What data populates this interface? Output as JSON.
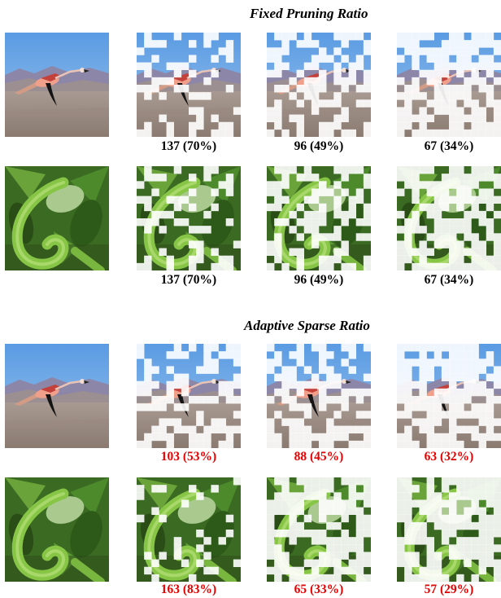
{
  "sections": [
    {
      "title": "Fixed Pruning Ratio",
      "rows": [
        {
          "image": "flamingo",
          "labels": [
            "137 (70%)",
            "96 (49%)",
            "67 (34%)"
          ]
        },
        {
          "image": "snake",
          "labels": [
            "137 (70%)",
            "96 (49%)",
            "67 (34%)"
          ]
        }
      ]
    },
    {
      "title": "Adaptive Sparse Ratio",
      "rows": [
        {
          "image": "flamingo",
          "labels": [
            "103 (53%)",
            "88 (45%)",
            "63 (32%)"
          ]
        },
        {
          "image": "snake",
          "labels": [
            "163 (83%)",
            "65 (33%)",
            "57 (29%)"
          ]
        }
      ]
    }
  ],
  "colors": {
    "fixed_label": "#000000",
    "adaptive_label": "#e60000",
    "pruned_overlay": "#ffffff"
  },
  "kept_fractions": [
    0.7,
    0.49,
    0.34,
    0.53,
    0.45,
    0.32,
    0.83,
    0.33,
    0.29
  ]
}
